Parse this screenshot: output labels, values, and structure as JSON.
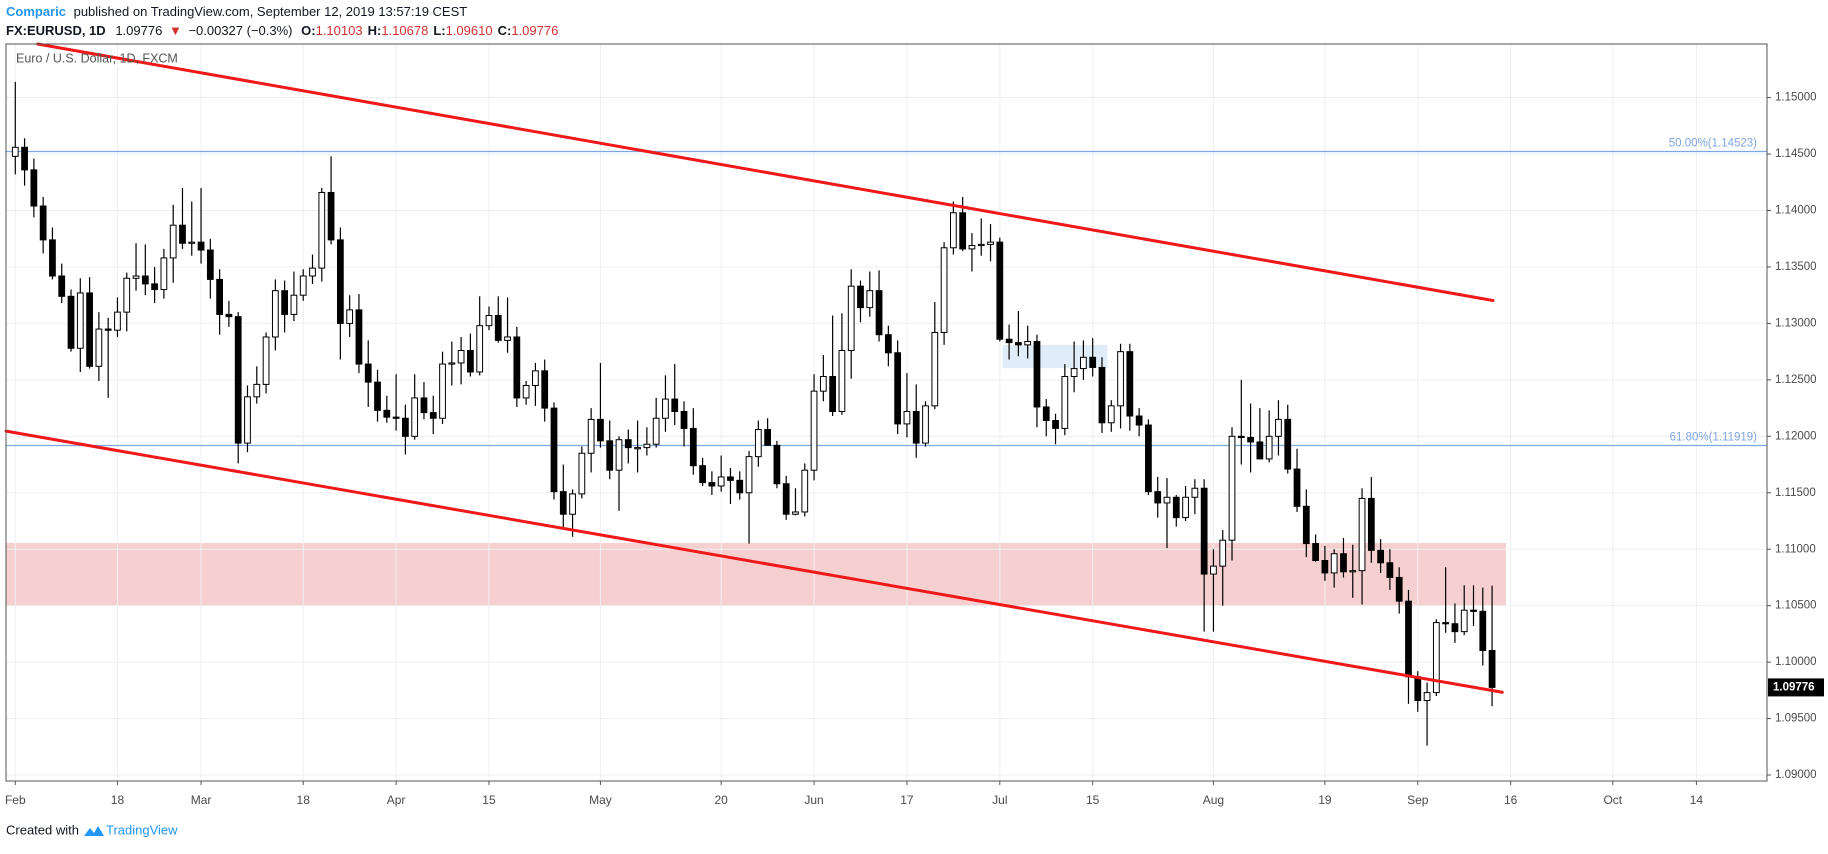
{
  "header": {
    "author": "Comparic",
    "published": "published on TradingView.com, September 12, 2019 13:57:19 CEST",
    "symbol": "FX:EURUSD, 1D",
    "last": "1.09776",
    "change": "−0.00327 (−0.3%)",
    "ohlc": [
      {
        "label": "O:",
        "value": "1.10103"
      },
      {
        "label": "H:",
        "value": "1.10678"
      },
      {
        "label": "L:",
        "value": "1.09610"
      },
      {
        "label": "C:",
        "value": "1.09776"
      }
    ]
  },
  "footer": {
    "created": "Created with",
    "brand": "TradingView"
  },
  "chart_data": {
    "type": "candlestick",
    "title": "Euro / U.S. Dollar, 1D, FXCM",
    "up_color": "#ffffff",
    "down_color": "#000000",
    "outline_color": "#000000",
    "grid": true,
    "xlim": [
      -1,
      188.6
    ],
    "xticks": [
      {
        "value": 0,
        "label": "Feb"
      },
      {
        "value": 11,
        "label": "18"
      },
      {
        "value": 20,
        "label": "Mar"
      },
      {
        "value": 31,
        "label": "18"
      },
      {
        "value": 41,
        "label": "Apr"
      },
      {
        "value": 51,
        "label": "15"
      },
      {
        "value": 63,
        "label": "May"
      },
      {
        "value": 76,
        "label": "20"
      },
      {
        "value": 86,
        "label": "Jun"
      },
      {
        "value": 96,
        "label": "17"
      },
      {
        "value": 106,
        "label": "Jul"
      },
      {
        "value": 116,
        "label": "15"
      },
      {
        "value": 129,
        "label": "Aug"
      },
      {
        "value": 141,
        "label": "19"
      },
      {
        "value": 151,
        "label": "Sep"
      },
      {
        "value": 161,
        "label": "16"
      },
      {
        "value": 172,
        "label": "Oct"
      },
      {
        "value": 181,
        "label": "14"
      }
    ],
    "ylim": [
      1.08947,
      1.15475
    ],
    "yticks": [
      {
        "value": 1.09,
        "label": "1.09000"
      },
      {
        "value": 1.095,
        "label": "1.09500"
      },
      {
        "value": 1.1,
        "label": "1.10000"
      },
      {
        "value": 1.105,
        "label": "1.10500"
      },
      {
        "value": 1.11,
        "label": "1.11000"
      },
      {
        "value": 1.115,
        "label": "1.11500"
      },
      {
        "value": 1.12,
        "label": "1.12000"
      },
      {
        "value": 1.125,
        "label": "1.12500"
      },
      {
        "value": 1.13,
        "label": "1.13000"
      },
      {
        "value": 1.135,
        "label": "1.13500"
      },
      {
        "value": 1.14,
        "label": "1.14000"
      },
      {
        "value": 1.145,
        "label": "1.14500"
      },
      {
        "value": 1.15,
        "label": "1.15000"
      }
    ],
    "hlines": [
      {
        "value": 1.14523,
        "label": "50.00%(1.14523)"
      },
      {
        "value": 1.11919,
        "label": "61.80%(1.11919)"
      }
    ],
    "hline_color": "#7ea6e0",
    "trendlines": [
      {
        "x": [
          2.4,
          159.1
        ],
        "y": [
          1.15475,
          1.13203
        ]
      },
      {
        "x": [
          -1,
          160.1
        ],
        "y": [
          1.12046,
          1.09733
        ]
      }
    ],
    "trendline_color": "#f01818",
    "zones": [
      {
        "x": [
          -1,
          160.5
        ],
        "y": [
          1.10498,
          1.11055
        ],
        "color": "#f4c4c4"
      },
      {
        "x": [
          106.3,
          117.6
        ],
        "y": [
          1.12604,
          1.1281
        ],
        "color": "#d8e8f6"
      }
    ],
    "open": [
      1.1448,
      1.1456,
      1.1436,
      1.1404,
      1.1374,
      1.1342,
      1.1324,
      1.1278,
      1.1327,
      1.1262,
      1.1295,
      1.1294,
      1.131,
      1.134,
      1.1342,
      1.1335,
      1.133,
      1.1358,
      1.1387,
      1.1371,
      1.1372,
      1.1365,
      1.1339,
      1.1308,
      1.1306,
      1.1194,
      1.1235,
      1.1246,
      1.1288,
      1.1329,
      1.1308,
      1.1325,
      1.1342,
      1.1349,
      1.1416,
      1.1374,
      1.13,
      1.1312,
      1.1264,
      1.1248,
      1.1223,
      1.1217,
      1.1216,
      1.12,
      1.1234,
      1.1221,
      1.1216,
      1.1264,
      1.1265,
      1.1276,
      1.1257,
      1.1298,
      1.1307,
      1.1285,
      1.1288,
      1.1234,
      1.1245,
      1.1258,
      1.1225,
      1.1151,
      1.1131,
      1.1149,
      1.1185,
      1.1215,
      1.1196,
      1.117,
      1.1197,
      1.119,
      1.119,
      1.1193,
      1.1216,
      1.1233,
      1.1222,
      1.1207,
      1.1174,
      1.1159,
      1.1156,
      1.1164,
      1.1161,
      1.115,
      1.1182,
      1.1206,
      1.1192,
      1.1158,
      1.1131,
      1.1133,
      1.117,
      1.124,
      1.1253,
      1.1222,
      1.1276,
      1.1333,
      1.1314,
      1.1329,
      1.129,
      1.1274,
      1.1211,
      1.1222,
      1.1194,
      1.1227,
      1.1292,
      1.1367,
      1.1398,
      1.1366,
      1.1369,
      1.137,
      1.1372,
      1.1286,
      1.1283,
      1.1281,
      1.1284,
      1.1226,
      1.1214,
      1.1207,
      1.1253,
      1.126,
      1.127,
      1.1261,
      1.1212,
      1.1227,
      1.1275,
      1.1218,
      1.121,
      1.1151,
      1.1141,
      1.1146,
      1.1128,
      1.1146,
      1.1154,
      1.1078,
      1.1085,
      1.1108,
      1.12,
      1.1199,
      1.1195,
      1.118,
      1.12,
      1.1215,
      1.1171,
      1.1138,
      1.1105,
      1.109,
      1.1079,
      1.1096,
      1.108,
      1.1081,
      1.1145,
      1.1099,
      1.1088,
      1.1075,
      1.1054,
      1.0987,
      1.0966,
      1.0973,
      1.1035,
      1.1034,
      1.1027,
      1.1046,
      1.1045,
      1.10103
    ],
    "high": [
      1.1514,
      1.1464,
      1.1446,
      1.1412,
      1.1385,
      1.1353,
      1.133,
      1.134,
      1.1341,
      1.131,
      1.1305,
      1.1323,
      1.1345,
      1.1371,
      1.137,
      1.135,
      1.1366,
      1.1405,
      1.142,
      1.1408,
      1.142,
      1.1375,
      1.1348,
      1.132,
      1.131,
      1.1245,
      1.1262,
      1.1292,
      1.1339,
      1.1338,
      1.1346,
      1.1348,
      1.1361,
      1.142,
      1.1448,
      1.1385,
      1.1325,
      1.1326,
      1.1285,
      1.1259,
      1.1236,
      1.1255,
      1.1228,
      1.1255,
      1.1248,
      1.1236,
      1.1275,
      1.1284,
      1.1288,
      1.1291,
      1.1324,
      1.1315,
      1.1324,
      1.1323,
      1.1297,
      1.1249,
      1.1265,
      1.1268,
      1.123,
      1.1175,
      1.1153,
      1.1191,
      1.1225,
      1.1265,
      1.1214,
      1.12,
      1.1206,
      1.1214,
      1.1208,
      1.1234,
      1.1254,
      1.1264,
      1.1231,
      1.1225,
      1.1181,
      1.1169,
      1.1183,
      1.1172,
      1.1169,
      1.1187,
      1.1214,
      1.1216,
      1.1196,
      1.1165,
      1.1154,
      1.1176,
      1.1255,
      1.1272,
      1.1307,
      1.1309,
      1.1348,
      1.1338,
      1.1346,
      1.1347,
      1.1298,
      1.1285,
      1.1256,
      1.1246,
      1.1231,
      1.1319,
      1.1372,
      1.1408,
      1.1412,
      1.138,
      1.1393,
      1.1388,
      1.1376,
      1.1299,
      1.1311,
      1.1298,
      1.129,
      1.1233,
      1.122,
      1.1264,
      1.1284,
      1.1285,
      1.1287,
      1.127,
      1.1232,
      1.1282,
      1.1282,
      1.1225,
      1.1215,
      1.1164,
      1.1163,
      1.1148,
      1.1156,
      1.1162,
      1.1162,
      1.11,
      1.1117,
      1.1208,
      1.125,
      1.1229,
      1.1225,
      1.1223,
      1.1232,
      1.1228,
      1.1189,
      1.1153,
      1.1113,
      1.1103,
      1.11,
      1.111,
      1.1104,
      1.1154,
      1.1164,
      1.1109,
      1.11,
      1.1084,
      1.1064,
      1.0992,
      1.0982,
      1.1038,
      1.1084,
      1.1052,
      1.1068,
      1.1068,
      1.1066,
      1.10678
    ],
    "low": [
      1.1432,
      1.1422,
      1.1394,
      1.1362,
      1.1339,
      1.1318,
      1.1275,
      1.1257,
      1.126,
      1.1249,
      1.1234,
      1.1288,
      1.1293,
      1.1329,
      1.1325,
      1.1318,
      1.1322,
      1.1336,
      1.1366,
      1.136,
      1.1353,
      1.1322,
      1.129,
      1.1297,
      1.1176,
      1.1186,
      1.1229,
      1.1238,
      1.1276,
      1.1292,
      1.1302,
      1.132,
      1.1335,
      1.1337,
      1.137,
      1.1268,
      1.1288,
      1.1256,
      1.1226,
      1.1213,
      1.1212,
      1.1205,
      1.1184,
      1.1197,
      1.1215,
      1.1202,
      1.1211,
      1.1245,
      1.1246,
      1.1253,
      1.1254,
      1.1294,
      1.1283,
      1.1274,
      1.1226,
      1.1228,
      1.1227,
      1.1213,
      1.1144,
      1.1118,
      1.1111,
      1.1145,
      1.1168,
      1.119,
      1.1162,
      1.1134,
      1.1176,
      1.1168,
      1.1183,
      1.119,
      1.1204,
      1.121,
      1.1191,
      1.1166,
      1.1156,
      1.1148,
      1.1151,
      1.114,
      1.1144,
      1.1105,
      1.1173,
      1.1192,
      1.1154,
      1.1126,
      1.113,
      1.1129,
      1.1161,
      1.1231,
      1.1218,
      1.1219,
      1.1251,
      1.1301,
      1.1306,
      1.1284,
      1.1262,
      1.1202,
      1.1199,
      1.1181,
      1.1191,
      1.1224,
      1.1281,
      1.1361,
      1.1364,
      1.1346,
      1.136,
      1.1355,
      1.1284,
      1.1268,
      1.1271,
      1.1269,
      1.1208,
      1.12,
      1.1193,
      1.1201,
      1.1239,
      1.125,
      1.1253,
      1.1203,
      1.1204,
      1.1207,
      1.1205,
      1.12,
      1.1148,
      1.1128,
      1.1101,
      1.112,
      1.1125,
      1.1131,
      1.1027,
      1.1027,
      1.105,
      1.109,
      1.1175,
      1.1168,
      1.118,
      1.1177,
      1.1183,
      1.1167,
      1.1133,
      1.1093,
      1.1089,
      1.1072,
      1.1066,
      1.1075,
      1.1057,
      1.1051,
      1.1088,
      1.1079,
      1.1064,
      1.1043,
      1.0963,
      1.0956,
      1.0926,
      1.097,
      1.1026,
      1.1017,
      1.1024,
      1.1032,
      1.0997,
      1.0961
    ],
    "close": [
      1.1456,
      1.1436,
      1.1404,
      1.1374,
      1.1342,
      1.1324,
      1.1278,
      1.1327,
      1.1262,
      1.1295,
      1.1294,
      1.131,
      1.134,
      1.1342,
      1.1335,
      1.133,
      1.1358,
      1.1387,
      1.1371,
      1.1372,
      1.1365,
      1.1339,
      1.1308,
      1.1306,
      1.1194,
      1.1235,
      1.1246,
      1.1288,
      1.1329,
      1.1308,
      1.1325,
      1.1342,
      1.1349,
      1.1416,
      1.1374,
      1.13,
      1.1312,
      1.1264,
      1.1248,
      1.1223,
      1.1217,
      1.1216,
      1.12,
      1.1234,
      1.1221,
      1.1216,
      1.1264,
      1.1265,
      1.1276,
      1.1257,
      1.1298,
      1.1307,
      1.1285,
      1.1288,
      1.1234,
      1.1245,
      1.1258,
      1.1225,
      1.1151,
      1.1131,
      1.1149,
      1.1185,
      1.1215,
      1.1196,
      1.117,
      1.1197,
      1.119,
      1.119,
      1.1193,
      1.1216,
      1.1233,
      1.1222,
      1.1207,
      1.1174,
      1.1159,
      1.1156,
      1.1164,
      1.1161,
      1.115,
      1.1182,
      1.1206,
      1.1192,
      1.1158,
      1.1131,
      1.1133,
      1.117,
      1.124,
      1.1253,
      1.1222,
      1.1276,
      1.1333,
      1.1314,
      1.1329,
      1.129,
      1.1274,
      1.1211,
      1.1222,
      1.1194,
      1.1227,
      1.1292,
      1.1367,
      1.1398,
      1.1366,
      1.1369,
      1.137,
      1.1372,
      1.1286,
      1.1283,
      1.1281,
      1.1284,
      1.1226,
      1.1214,
      1.1207,
      1.1253,
      1.126,
      1.127,
      1.1261,
      1.1212,
      1.1227,
      1.1275,
      1.1218,
      1.121,
      1.1151,
      1.1141,
      1.1146,
      1.1128,
      1.1146,
      1.1154,
      1.1078,
      1.1085,
      1.1108,
      1.12,
      1.1199,
      1.1195,
      1.118,
      1.12,
      1.1215,
      1.1171,
      1.1138,
      1.1105,
      1.109,
      1.1079,
      1.1096,
      1.108,
      1.1081,
      1.1145,
      1.1099,
      1.1088,
      1.1075,
      1.1054,
      1.0987,
      1.0966,
      1.0973,
      1.1035,
      1.1034,
      1.1027,
      1.1046,
      1.1045,
      1.10103,
      1.09776
    ]
  }
}
